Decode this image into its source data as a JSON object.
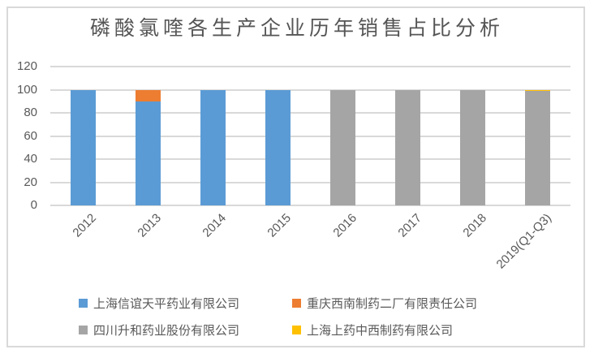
{
  "frame": {
    "background": "#ffffff",
    "border_color": "#d9d9d9"
  },
  "chart_data": {
    "type": "bar",
    "stacked": true,
    "title": "磷酸氯喹各生产企业历年销售占比分析",
    "xlabel": "",
    "ylabel": "",
    "categories": [
      "2012",
      "2013",
      "2014",
      "2015",
      "2016",
      "2017",
      "2018",
      "2019(Q1-Q3)"
    ],
    "series": [
      {
        "name": "上海信谊天平药业有限公司",
        "color": "#5b9bd5",
        "values": [
          100,
          90,
          100,
          100,
          0,
          0,
          0,
          0
        ]
      },
      {
        "name": "重庆西南制药二厂有限责任公司",
        "color": "#ed7d31",
        "values": [
          0,
          10,
          0,
          0,
          0,
          0,
          0,
          0
        ]
      },
      {
        "name": "四川升和药业股份有限公司",
        "color": "#a5a5a5",
        "values": [
          0,
          0,
          0,
          0,
          100,
          100,
          100,
          99
        ]
      },
      {
        "name": "上海上药中西制药有限公司",
        "color": "#ffc000",
        "values": [
          0,
          0,
          0,
          0,
          0,
          0,
          0,
          1
        ]
      }
    ],
    "y_axis": {
      "min": 0,
      "max": 120,
      "tick_step": 20,
      "ticks": [
        0,
        20,
        40,
        60,
        80,
        100,
        120
      ]
    },
    "grid": true,
    "gridline_color": "#d9d9d9",
    "text_color": "#595959",
    "legend_position": "bottom",
    "legend_columns": 2
  }
}
